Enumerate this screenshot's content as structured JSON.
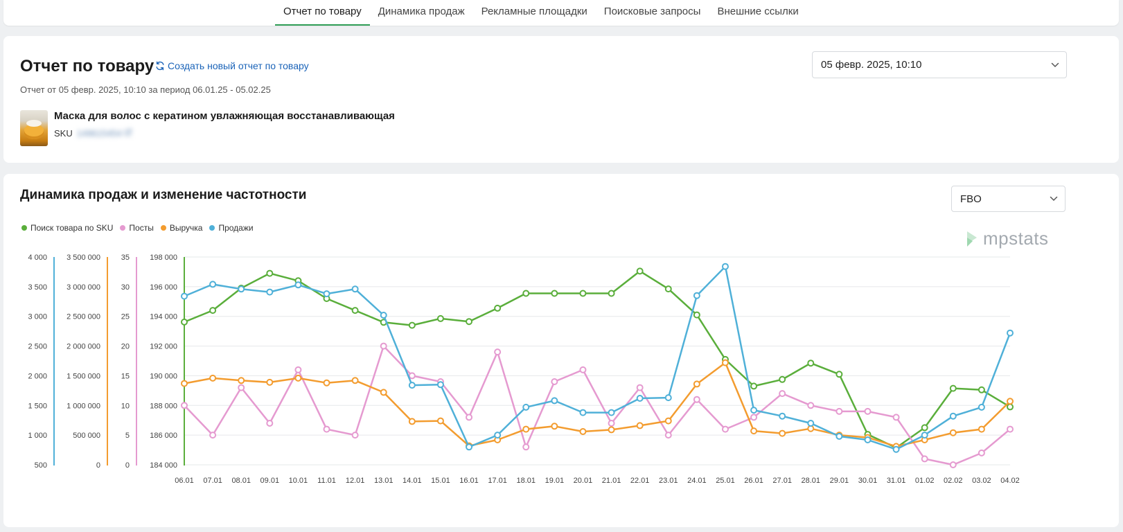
{
  "tabs": [
    {
      "label": "Отчет по товару",
      "active": true
    },
    {
      "label": "Динамика продаж",
      "active": false
    },
    {
      "label": "Рекламные площадки",
      "active": false
    },
    {
      "label": "Поисковые запросы",
      "active": false
    },
    {
      "label": "Внешние ссылки",
      "active": false
    }
  ],
  "report": {
    "title": "Отчет по товару",
    "new_report_link": "Создать новый отчет по товару",
    "subtitle": "Отчет от 05 февр. 2025, 10:10 за период 06.01.25 - 05.02.25",
    "date_select": "05 февр. 2025, 10:10",
    "product_name": "Маска для волос с кератином увлажняющая восстанавливающая",
    "sku_label": "SKU",
    "sku_value": "149615454"
  },
  "chart_section": {
    "title": "Динамика продаж и изменение частотности",
    "fbo_select": "FBO",
    "logo": "mpstats"
  },
  "chart_data": {
    "type": "line",
    "title": "Динамика продаж и изменение частотности",
    "categories": [
      "06.01",
      "07.01",
      "08.01",
      "09.01",
      "10.01",
      "11.01",
      "12.01",
      "13.01",
      "14.01",
      "15.01",
      "16.01",
      "17.01",
      "18.01",
      "19.01",
      "20.01",
      "21.01",
      "22.01",
      "23.01",
      "24.01",
      "25.01",
      "26.01",
      "27.01",
      "28.01",
      "29.01",
      "30.01",
      "31.01",
      "01.02",
      "02.02",
      "03.02",
      "04.02"
    ],
    "grid": true,
    "legend_position": "top-left",
    "axes": [
      {
        "id": "sales",
        "ticks": [
          "500",
          "1 000",
          "1 500",
          "2 000",
          "2 500",
          "3 000",
          "3 500",
          "4 000"
        ],
        "min": 500,
        "max": 4000,
        "color": "#4fb0d8"
      },
      {
        "id": "revenue",
        "ticks": [
          "0",
          "500 000",
          "1 000 000",
          "1 500 000",
          "2 000 000",
          "2 500 000",
          "3 000 000",
          "3 500 000"
        ],
        "min": 0,
        "max": 3500000,
        "color": "#f39c2f"
      },
      {
        "id": "posts",
        "ticks": [
          "0",
          "5",
          "10",
          "15",
          "20",
          "25",
          "30",
          "35"
        ],
        "min": 0,
        "max": 35,
        "color": "#e59ad0"
      },
      {
        "id": "search",
        "ticks": [
          "184 000",
          "186 000",
          "188 000",
          "190 000",
          "192 000",
          "194 000",
          "196 000",
          "198 000"
        ],
        "min": 184000,
        "max": 198000,
        "color": "#5aae3b"
      }
    ],
    "series": [
      {
        "name": "Поиск товара по SKU",
        "axis": "search",
        "color": "#5aae3b",
        "values": [
          193620,
          194400,
          195900,
          196900,
          196400,
          195200,
          194400,
          193600,
          193400,
          193850,
          193650,
          194550,
          195550,
          195550,
          195550,
          195550,
          197050,
          195850,
          194100,
          191100,
          189300,
          189750,
          190850,
          190100,
          186050,
          185150,
          186500,
          189150,
          189050,
          187900
        ]
      },
      {
        "name": "Посты",
        "axis": "posts",
        "color": "#e59ad0",
        "values": [
          10,
          5,
          13,
          7,
          16,
          6,
          5,
          20,
          15,
          14,
          8,
          19,
          3,
          14,
          16,
          7,
          13,
          5,
          11,
          6,
          8,
          12,
          10,
          9,
          9,
          8,
          1,
          0,
          2,
          6
        ]
      },
      {
        "name": "Выручка",
        "axis": "revenue",
        "color": "#f39c2f",
        "values": [
          1370000,
          1460000,
          1420000,
          1390000,
          1460000,
          1380000,
          1420000,
          1220000,
          730000,
          740000,
          320000,
          420000,
          600000,
          650000,
          560000,
          590000,
          660000,
          740000,
          1360000,
          1720000,
          570000,
          530000,
          610000,
          500000,
          460000,
          310000,
          420000,
          540000,
          600000,
          1070000
        ]
      },
      {
        "name": "Продажи",
        "axis": "sales",
        "color": "#4fb0d8",
        "values": [
          3340,
          3540,
          3460,
          3410,
          3530,
          3380,
          3460,
          3020,
          1840,
          1850,
          800,
          1000,
          1470,
          1580,
          1380,
          1380,
          1620,
          1630,
          3350,
          3840,
          1420,
          1320,
          1200,
          980,
          920,
          760,
          1000,
          1320,
          1470,
          2720
        ]
      }
    ]
  }
}
